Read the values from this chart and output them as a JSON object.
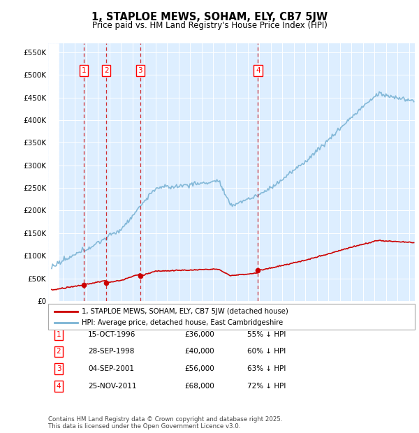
{
  "title": "1, STAPLOE MEWS, SOHAM, ELY, CB7 5JW",
  "subtitle": "Price paid vs. HM Land Registry's House Price Index (HPI)",
  "sale_dates_year": [
    1996.79,
    1998.74,
    2001.68,
    2011.9
  ],
  "sale_prices": [
    36000,
    40000,
    56000,
    68000
  ],
  "sale_labels": [
    "1",
    "2",
    "3",
    "4"
  ],
  "sale_date_strings": [
    "15-OCT-1996",
    "28-SEP-1998",
    "04-SEP-2001",
    "25-NOV-2011"
  ],
  "sale_pct_hpi": [
    "55% ↓ HPI",
    "60% ↓ HPI",
    "63% ↓ HPI",
    "72% ↓ HPI"
  ],
  "hpi_color": "#7ab3d4",
  "sale_color": "#cc0000",
  "vline_color": "#cc0000",
  "background_color": "#ddeeff",
  "ylim": [
    0,
    570000
  ],
  "xlim_start": 1993.7,
  "xlim_end": 2025.5,
  "legend_label_red": "1, STAPLOE MEWS, SOHAM, ELY, CB7 5JW (detached house)",
  "legend_label_blue": "HPI: Average price, detached house, East Cambridgeshire",
  "footer": "Contains HM Land Registry data © Crown copyright and database right 2025.\nThis data is licensed under the Open Government Licence v3.0."
}
